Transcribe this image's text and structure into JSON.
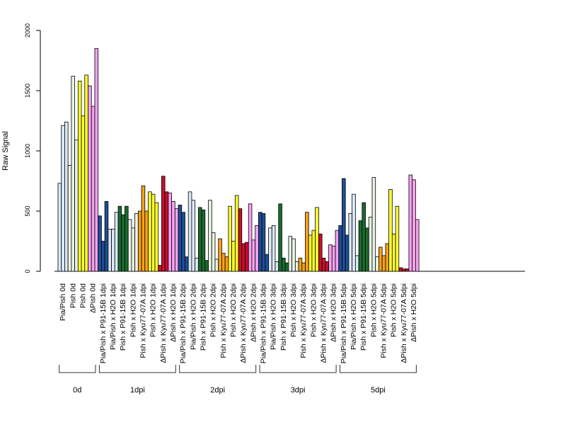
{
  "chart_data": {
    "type": "bar",
    "ylabel": "Raw Signal",
    "ylim": [
      0,
      2000
    ],
    "yticks": [
      0,
      500,
      1000,
      1500,
      2000
    ],
    "grid": false,
    "categories": [
      "Pia/Pish 0d",
      "Pish 0d",
      "Pish 0d",
      "ΔPish 0d",
      "Pia/Pish x P91-15B 1dpi",
      "Pia/Pish x H2O 1dpi",
      "Pish x P91-15B 1dpi",
      "Pish x H2O 1dpi",
      "Pish x Kyu77-07A 1dpi",
      "Pish x H2O 1dpi",
      "ΔPish x Kyu77-07A 1dpi",
      "ΔPish x H2O 1dpi",
      "Pia/Pish x P91-15B 2dpi",
      "Pia/Pish x H2O 2dpi",
      "Pish x P91-15B 2dpi",
      "Pish x H2O 2dpi",
      "Pish x Kyu77-07A 2dpi",
      "Pish x H2O 2dpi",
      "ΔPish x Kyu77-07A 2dpi",
      "ΔPish x H2O 2dpi",
      "Pia/Pish x P91-15B 3dpi",
      "Pia/Pish x H2O 3dpi",
      "Pish x P91-15B 3dpi",
      "Pish x H2O 3dpi",
      "Pish x Kyu77-07A 3dpi",
      "Pish x H2O 3dpi",
      "ΔPish x Kyu77-07A 3dpi",
      "ΔPish x H2O 3dpi",
      "Pia/Pish x P91-15B 5dpi",
      "Pia/Pish x H2O 5dpi",
      "Pish x P91-15B 5dpi",
      "Pish x H2O 5dpi",
      "Pish x Kyu77-07A 5dpi",
      "Pish x H2O 5dpi",
      "ΔPish x Kyu77-07A 5dpi",
      "ΔPish x H2O 5dpi"
    ],
    "colors": [
      "#dbe9f7",
      "#e8f3e4",
      "#ffff33",
      "#f5a3f0",
      "#1f4e96",
      "#dbe9f7",
      "#1b6b2f",
      "#e8f3e4",
      "#f6a21a",
      "#ffff33",
      "#c8102e",
      "#f5a3f0",
      "#1f4e96",
      "#dbe9f7",
      "#1b6b2f",
      "#e8f3e4",
      "#f6a21a",
      "#ffff33",
      "#c8102e",
      "#f5a3f0",
      "#1f4e96",
      "#dbe9f7",
      "#1b6b2f",
      "#e8f3e4",
      "#f6a21a",
      "#ffff33",
      "#c8102e",
      "#f5a3f0",
      "#1f4e96",
      "#dbe9f7",
      "#1b6b2f",
      "#e8f3e4",
      "#f6a21a",
      "#ffff33",
      "#c8102e",
      "#f5a3f0"
    ],
    "values": [
      [
        730,
        1210,
        1240
      ],
      [
        880,
        1620,
        1090
      ],
      [
        1580,
        1290,
        1630
      ],
      [
        1540,
        1370,
        1850
      ],
      [
        460,
        250,
        580
      ],
      [
        350,
        350,
        490
      ],
      [
        540,
        470,
        540
      ],
      [
        430,
        360,
        480
      ],
      [
        500,
        710,
        500
      ],
      [
        660,
        640,
        570
      ],
      [
        50,
        790,
        660
      ],
      [
        650,
        580,
        520
      ],
      [
        550,
        490,
        120
      ],
      [
        660,
        590,
        110
      ],
      [
        530,
        510,
        90
      ],
      [
        590,
        320,
        100
      ],
      [
        270,
        150,
        120
      ],
      [
        540,
        250,
        630
      ],
      [
        520,
        230,
        240
      ],
      [
        560,
        260,
        380
      ],
      [
        490,
        480,
        140
      ],
      [
        360,
        380,
        80
      ],
      [
        560,
        110,
        70
      ],
      [
        290,
        270,
        80
      ],
      [
        110,
        70,
        490
      ],
      [
        300,
        340,
        530
      ],
      [
        310,
        110,
        80
      ],
      [
        220,
        210,
        340
      ],
      [
        380,
        770,
        300
      ],
      [
        480,
        640,
        130
      ],
      [
        420,
        570,
        360
      ],
      [
        450,
        780,
        120
      ],
      [
        200,
        130,
        230
      ],
      [
        680,
        310,
        540
      ],
      [
        30,
        20,
        20
      ],
      [
        800,
        760,
        430
      ]
    ],
    "groups": [
      {
        "label": "0d",
        "start": 0,
        "end": 3
      },
      {
        "label": "1dpi",
        "start": 4,
        "end": 11
      },
      {
        "label": "2dpi",
        "start": 12,
        "end": 19
      },
      {
        "label": "3dpi",
        "start": 20,
        "end": 27
      },
      {
        "label": "5dpi",
        "start": 28,
        "end": 35
      }
    ]
  }
}
